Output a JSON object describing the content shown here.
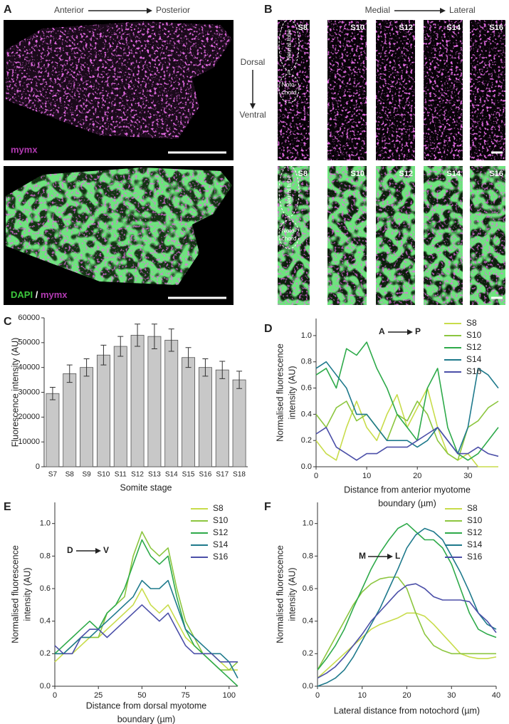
{
  "panels": {
    "a": {
      "label": "A",
      "from": "Anterior",
      "to": "Posterior",
      "stain_top": "mymx",
      "stain_bottom": [
        "DAPI",
        "/",
        "mymx"
      ]
    },
    "b": {
      "label": "B",
      "from": "Medial",
      "to": "Lateral",
      "top": "Dorsal",
      "bottom": "Ventral",
      "stages": [
        "S8",
        "S10",
        "S12",
        "S14",
        "S16"
      ],
      "neural_tube": "Neural tube",
      "equals": "=",
      "notochord": [
        "Noto-",
        "chord"
      ]
    }
  },
  "chart_data": [
    {
      "type": "bar",
      "panel_label": "C",
      "ylabel": "Fluorescence intensity (AU)",
      "xlabel": "Somite stage",
      "categories": [
        "S7",
        "S8",
        "S9",
        "S10",
        "S11",
        "S12",
        "S13",
        "S14",
        "S15",
        "S16",
        "S17",
        "S18"
      ],
      "values": [
        29500,
        37500,
        40000,
        45000,
        48500,
        53000,
        52500,
        51000,
        44000,
        40000,
        39000,
        35000
      ],
      "errors": [
        2500,
        3500,
        3500,
        4000,
        4000,
        4500,
        5000,
        4500,
        4000,
        3500,
        3500,
        3500
      ],
      "color": "#c8c8c8",
      "ylim": [
        0,
        60000
      ],
      "yticks": [
        0,
        10000,
        20000,
        30000,
        40000,
        50000,
        60000
      ]
    },
    {
      "type": "line",
      "panel_label": "D",
      "annotation": {
        "from": "A",
        "to": "P"
      },
      "ylabel": [
        "Normalised fluorescence",
        "intensity (AU)"
      ],
      "xlabel": [
        "Distance from anterior myotome",
        "boundary (µm)"
      ],
      "x": [
        0,
        2,
        4,
        6,
        8,
        10,
        12,
        14,
        16,
        18,
        20,
        22,
        24,
        26,
        28,
        30,
        32,
        34,
        36
      ],
      "series": [
        {
          "name": "S8",
          "color": "#c8dc4a",
          "values": [
            0.2,
            0.1,
            0.05,
            0.3,
            0.5,
            0.3,
            0.2,
            0.4,
            0.55,
            0.3,
            0.45,
            0.6,
            0.3,
            0.1,
            0.05,
            0.1,
            0.0,
            0.0,
            0.0
          ]
        },
        {
          "name": "S10",
          "color": "#8cc63f",
          "values": [
            0.4,
            0.3,
            0.45,
            0.5,
            0.35,
            0.4,
            0.3,
            0.2,
            0.4,
            0.35,
            0.5,
            0.4,
            0.2,
            0.1,
            0.05,
            0.3,
            0.35,
            0.45,
            0.5
          ]
        },
        {
          "name": "S12",
          "color": "#2eaa4a",
          "values": [
            0.7,
            0.75,
            0.6,
            0.9,
            0.85,
            0.95,
            0.75,
            0.6,
            0.4,
            0.3,
            0.2,
            0.6,
            0.75,
            0.3,
            0.1,
            0.05,
            0.1,
            0.2,
            0.3
          ]
        },
        {
          "name": "S14",
          "color": "#1f7a8c",
          "values": [
            0.75,
            0.8,
            0.7,
            0.6,
            0.4,
            0.4,
            0.3,
            0.2,
            0.2,
            0.2,
            0.15,
            0.2,
            0.3,
            0.2,
            0.1,
            0.3,
            0.75,
            0.7,
            0.6
          ]
        },
        {
          "name": "S16",
          "color": "#4b4fa8",
          "values": [
            0.25,
            0.3,
            0.15,
            0.1,
            0.05,
            0.1,
            0.1,
            0.15,
            0.15,
            0.15,
            0.2,
            0.25,
            0.3,
            0.2,
            0.1,
            0.1,
            0.15,
            0.1,
            0.08
          ]
        }
      ],
      "xlim": [
        0,
        36
      ],
      "xticks": [
        0,
        10,
        20,
        30
      ],
      "ylim": [
        0,
        1.13
      ],
      "yticks": [
        {
          "value": 0,
          "label": "0.0"
        },
        0.2,
        0.4,
        0.6,
        0.8,
        {
          "value": 1,
          "label": "1.0"
        }
      ]
    },
    {
      "type": "line",
      "panel_label": "E",
      "annotation": {
        "from": "D",
        "to": "V"
      },
      "ylabel": [
        "Normalised fluorescence",
        "intensity (AU)"
      ],
      "xlabel": [
        "Distance from dorsal myotome",
        "boundary (µm)"
      ],
      "x": [
        0,
        5,
        10,
        15,
        20,
        25,
        30,
        35,
        40,
        45,
        50,
        55,
        60,
        65,
        70,
        75,
        80,
        85,
        90,
        95,
        100,
        105
      ],
      "series": [
        {
          "name": "S8",
          "color": "#c8dc4a",
          "values": [
            0.15,
            0.2,
            0.2,
            0.25,
            0.3,
            0.3,
            0.35,
            0.4,
            0.45,
            0.5,
            0.6,
            0.5,
            0.45,
            0.5,
            0.4,
            0.3,
            0.25,
            0.2,
            0.2,
            0.15,
            0.1,
            0.1
          ]
        },
        {
          "name": "S10",
          "color": "#8cc63f",
          "values": [
            0.2,
            0.2,
            0.25,
            0.3,
            0.3,
            0.3,
            0.45,
            0.5,
            0.55,
            0.8,
            0.95,
            0.85,
            0.8,
            0.85,
            0.6,
            0.4,
            0.3,
            0.2,
            0.15,
            0.1,
            0.1,
            0.15
          ]
        },
        {
          "name": "S12",
          "color": "#2eaa4a",
          "values": [
            0.2,
            0.25,
            0.3,
            0.35,
            0.4,
            0.35,
            0.45,
            0.5,
            0.6,
            0.75,
            0.9,
            0.8,
            0.75,
            0.8,
            0.55,
            0.35,
            0.25,
            0.2,
            0.15,
            0.1,
            0.05,
            0.0
          ]
        },
        {
          "name": "S14",
          "color": "#1f7a8c",
          "values": [
            0.2,
            0.2,
            0.25,
            0.3,
            0.3,
            0.35,
            0.4,
            0.45,
            0.5,
            0.55,
            0.65,
            0.6,
            0.6,
            0.65,
            0.5,
            0.35,
            0.3,
            0.25,
            0.2,
            0.2,
            0.15,
            0.05
          ]
        },
        {
          "name": "S16",
          "color": "#4b4fa8",
          "values": [
            0.25,
            0.2,
            0.2,
            0.3,
            0.35,
            0.35,
            0.3,
            0.35,
            0.4,
            0.45,
            0.5,
            0.45,
            0.4,
            0.45,
            0.35,
            0.25,
            0.2,
            0.2,
            0.2,
            0.15,
            0.15,
            0.15
          ]
        }
      ],
      "xlim": [
        0,
        105
      ],
      "xticks": [
        0,
        25,
        50,
        75,
        100
      ],
      "ylim": [
        0,
        1.13
      ],
      "yticks": [
        {
          "value": 0,
          "label": "0.0"
        },
        0.2,
        0.4,
        0.6,
        0.8,
        {
          "value": 1,
          "label": "1.0"
        }
      ]
    },
    {
      "type": "line",
      "panel_label": "F",
      "annotation": {
        "from": "M",
        "to": "L"
      },
      "ylabel": [
        "Normalised fluorescence",
        "intensity (AU)"
      ],
      "xlabel": [
        "Lateral distance from notochord (µm)"
      ],
      "x": [
        0,
        2,
        4,
        6,
        8,
        10,
        12,
        14,
        16,
        18,
        20,
        22,
        24,
        26,
        28,
        30,
        32,
        34,
        36,
        38,
        40
      ],
      "series": [
        {
          "name": "S8",
          "color": "#c8dc4a",
          "values": [
            0.05,
            0.1,
            0.15,
            0.2,
            0.25,
            0.3,
            0.35,
            0.38,
            0.4,
            0.42,
            0.45,
            0.45,
            0.43,
            0.38,
            0.32,
            0.26,
            0.2,
            0.18,
            0.17,
            0.17,
            0.18
          ]
        },
        {
          "name": "S10",
          "color": "#8cc63f",
          "values": [
            0.1,
            0.2,
            0.3,
            0.4,
            0.5,
            0.58,
            0.63,
            0.66,
            0.67,
            0.67,
            0.6,
            0.45,
            0.32,
            0.25,
            0.22,
            0.2,
            0.2,
            0.2,
            0.2,
            0.2,
            0.2
          ]
        },
        {
          "name": "S12",
          "color": "#2eaa4a",
          "values": [
            0.1,
            0.17,
            0.25,
            0.35,
            0.48,
            0.6,
            0.72,
            0.82,
            0.9,
            0.97,
            1.0,
            0.95,
            0.9,
            0.9,
            0.85,
            0.75,
            0.6,
            0.45,
            0.35,
            0.32,
            0.3
          ]
        },
        {
          "name": "S14",
          "color": "#1f7a8c",
          "values": [
            0.0,
            0.02,
            0.05,
            0.1,
            0.18,
            0.28,
            0.38,
            0.48,
            0.6,
            0.72,
            0.85,
            0.93,
            0.97,
            0.95,
            0.9,
            0.8,
            0.7,
            0.58,
            0.45,
            0.38,
            0.35
          ]
        },
        {
          "name": "S16",
          "color": "#4b4fa8",
          "values": [
            0.05,
            0.08,
            0.12,
            0.18,
            0.25,
            0.32,
            0.4,
            0.46,
            0.52,
            0.58,
            0.62,
            0.63,
            0.6,
            0.55,
            0.53,
            0.53,
            0.53,
            0.52,
            0.45,
            0.4,
            0.33
          ]
        }
      ],
      "xlim": [
        0,
        40
      ],
      "xticks": [
        0,
        10,
        20,
        30,
        40
      ],
      "ylim": [
        0,
        1.13
      ],
      "yticks": [
        {
          "value": 0,
          "label": "0.0"
        },
        0.2,
        0.4,
        0.6,
        0.8,
        {
          "value": 1,
          "label": "1.0"
        }
      ]
    }
  ]
}
